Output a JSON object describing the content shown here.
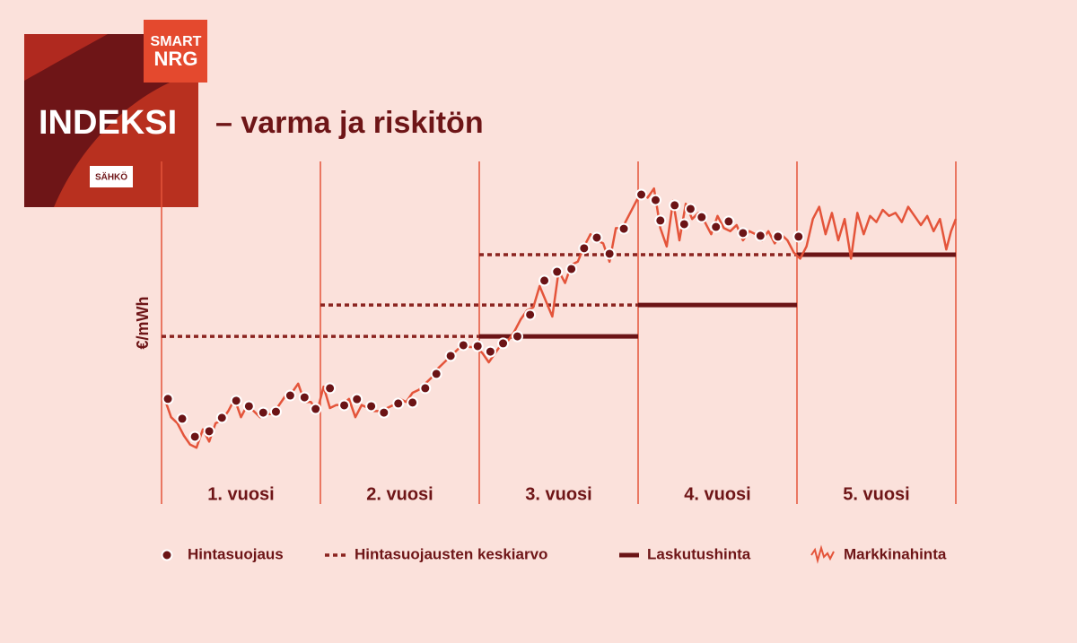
{
  "logo": {
    "brand_top": "SMART",
    "brand_bottom": "NRG",
    "label": "SÄHKÖ"
  },
  "chart_data": {
    "type": "line",
    "title": "INDEKSI",
    "subtitle": "– varma ja riskitön",
    "y_label": "€/mWh",
    "categories": [
      "1. vuosi",
      "2. vuosi",
      "3. vuosi",
      "4. vuosi",
      "5. vuosi"
    ],
    "xlim": [
      0,
      5
    ],
    "ylim": [
      0,
      100
    ],
    "series": [
      {
        "name": "Hintasuojaus",
        "color": "#6b1416",
        "style": "dots",
        "x": [
          0.04,
          0.13,
          0.21,
          0.3,
          0.38,
          0.47,
          0.55,
          0.64,
          0.72,
          0.81,
          0.9,
          0.97,
          1.06,
          1.15,
          1.23,
          1.32,
          1.4,
          1.49,
          1.58,
          1.66,
          1.73,
          1.82,
          1.9,
          1.99,
          2.07,
          2.15,
          2.24,
          2.32,
          2.41,
          2.49,
          2.58,
          2.66,
          2.74,
          2.82,
          2.91,
          3.02,
          3.11,
          3.14,
          3.23,
          3.29,
          3.33,
          3.4,
          3.49,
          3.57,
          3.66,
          3.77,
          3.88,
          4.01
        ],
        "values": [
          28,
          21.5,
          15.6,
          17.4,
          21.8,
          27.4,
          25.6,
          23.5,
          23.8,
          29.1,
          28.5,
          24.7,
          31.5,
          25.9,
          27.9,
          25.6,
          23.5,
          26.5,
          26.8,
          31.5,
          36.2,
          42.1,
          45.6,
          45.3,
          43.5,
          46.2,
          48.5,
          55.6,
          66.8,
          69.7,
          70.6,
          77.4,
          80.9,
          75.6,
          83.8,
          95,
          93.2,
          86.5,
          91.5,
          85.3,
          90.3,
          87.6,
          84.4,
          86.2,
          82.4,
          81.5,
          81.2,
          81.2
        ]
      },
      {
        "name": "Hintasuojausten keskiarvo",
        "color": "#8b2420",
        "style": "dotted",
        "segments": [
          {
            "x": [
              0,
              2
            ],
            "values": [
              48.5,
              48.5
            ]
          },
          {
            "x": [
              1,
              3
            ],
            "values": [
              58.8,
              58.8
            ]
          },
          {
            "x": [
              2,
              4
            ],
            "values": [
              75.3,
              75.3
            ]
          }
        ]
      },
      {
        "name": "Laskutushinta",
        "color": "#6b1416",
        "style": "solid",
        "segments": [
          {
            "x": [
              2,
              3
            ],
            "values": [
              48.5,
              48.5
            ]
          },
          {
            "x": [
              3,
              4
            ],
            "values": [
              58.8,
              58.8
            ]
          },
          {
            "x": [
              4,
              5
            ],
            "values": [
              75.3,
              75.3
            ]
          }
        ]
      },
      {
        "name": "Markkinahinta",
        "color": "#e4543a",
        "style": "line",
        "x": [
          0.02,
          0.06,
          0.1,
          0.14,
          0.18,
          0.22,
          0.26,
          0.3,
          0.34,
          0.38,
          0.42,
          0.46,
          0.5,
          0.54,
          0.58,
          0.62,
          0.66,
          0.7,
          0.74,
          0.78,
          0.82,
          0.86,
          0.9,
          0.94,
          0.98,
          1.02,
          1.06,
          1.1,
          1.14,
          1.18,
          1.22,
          1.26,
          1.3,
          1.34,
          1.38,
          1.42,
          1.46,
          1.5,
          1.54,
          1.58,
          1.62,
          1.66,
          1.7,
          1.74,
          1.78,
          1.82,
          1.86,
          1.9,
          1.94,
          1.98,
          2.02,
          2.06,
          2.1,
          2.14,
          2.18,
          2.22,
          2.26,
          2.3,
          2.34,
          2.38,
          2.42,
          2.46,
          2.5,
          2.54,
          2.58,
          2.62,
          2.66,
          2.7,
          2.74,
          2.78,
          2.82,
          2.86,
          2.9,
          2.94,
          2.98,
          3.02,
          3.06,
          3.1,
          3.14,
          3.18,
          3.22,
          3.26,
          3.3,
          3.34,
          3.38,
          3.42,
          3.46,
          3.5,
          3.54,
          3.58,
          3.62,
          3.66,
          3.7,
          3.74,
          3.78,
          3.82,
          3.86,
          3.9,
          3.94,
          3.98,
          4.02,
          4.06,
          4.1,
          4.14,
          4.18,
          4.22,
          4.26,
          4.3,
          4.34,
          4.38,
          4.42,
          4.46,
          4.5,
          4.54,
          4.58,
          4.62,
          4.66,
          4.7,
          4.74,
          4.78,
          4.82,
          4.86,
          4.9,
          4.94,
          4.97,
          5.0
        ],
        "values": [
          28,
          22,
          20,
          16,
          13,
          12,
          18,
          14,
          20,
          21,
          24,
          28,
          22,
          26,
          24,
          22,
          23,
          23,
          26,
          29,
          30,
          33,
          27,
          27,
          24,
          32,
          25,
          26,
          26,
          28,
          22,
          26,
          25,
          24,
          24,
          25,
          26,
          28,
          27,
          30,
          31,
          33,
          35,
          38,
          40,
          42,
          44,
          46,
          45,
          45,
          43,
          40,
          43,
          46,
          47,
          50,
          54,
          57,
          58,
          65,
          60,
          55,
          70,
          66,
          72,
          73,
          78,
          82,
          80,
          79,
          73,
          84,
          84,
          88,
          92,
          96,
          94,
          97,
          84,
          78,
          93,
          80,
          92,
          87,
          89,
          86,
          82,
          88,
          84,
          83,
          85,
          80,
          83,
          82,
          80,
          83,
          79,
          82,
          80,
          76,
          74,
          78,
          87,
          91,
          82,
          89,
          80,
          87,
          74,
          89,
          82,
          88,
          86,
          90,
          88,
          89,
          86,
          91,
          88,
          85,
          88,
          83,
          87,
          77,
          83,
          87
        ]
      }
    ]
  }
}
